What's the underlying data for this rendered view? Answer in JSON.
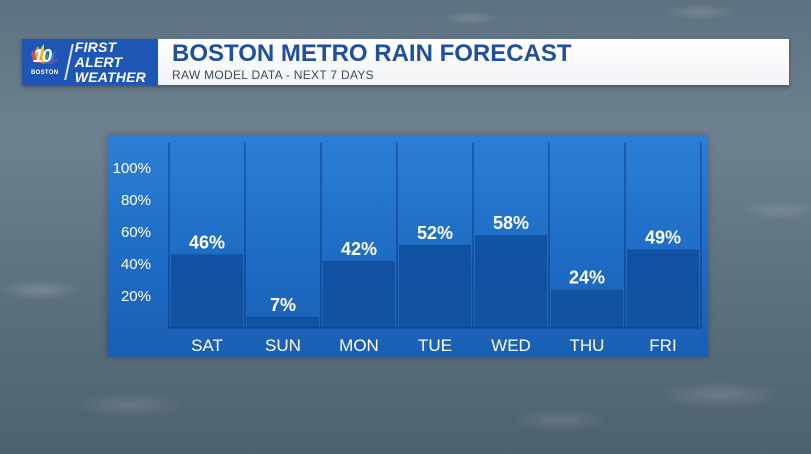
{
  "header": {
    "logo_number": "10",
    "logo_city": "BOSTON",
    "logo_line1": "FIRST ALERT",
    "logo_line2": "WEATHER",
    "title": "BOSTON METRO RAIN FORECAST",
    "subtitle": "RAW MODEL DATA - NEXT 7 DAYS"
  },
  "colors": {
    "panel": "#1e6cc4",
    "bar": "#0f4f9c",
    "title": "#1f4f9e",
    "logo_bg": "#1f56b6"
  },
  "chart_data": {
    "type": "bar",
    "categories": [
      "SAT",
      "SUN",
      "MON",
      "TUE",
      "WED",
      "THU",
      "FRI"
    ],
    "values": [
      46,
      7,
      42,
      52,
      58,
      24,
      49
    ],
    "value_labels": [
      "46%",
      "7%",
      "42%",
      "52%",
      "58%",
      "24%",
      "49%"
    ],
    "y_ticks": [
      20,
      40,
      60,
      80,
      100
    ],
    "y_tick_labels": [
      "20%",
      "40%",
      "60%",
      "80%",
      "100%"
    ],
    "ylim": [
      0,
      100
    ],
    "unit": "%",
    "grid": false,
    "legend": "none"
  }
}
